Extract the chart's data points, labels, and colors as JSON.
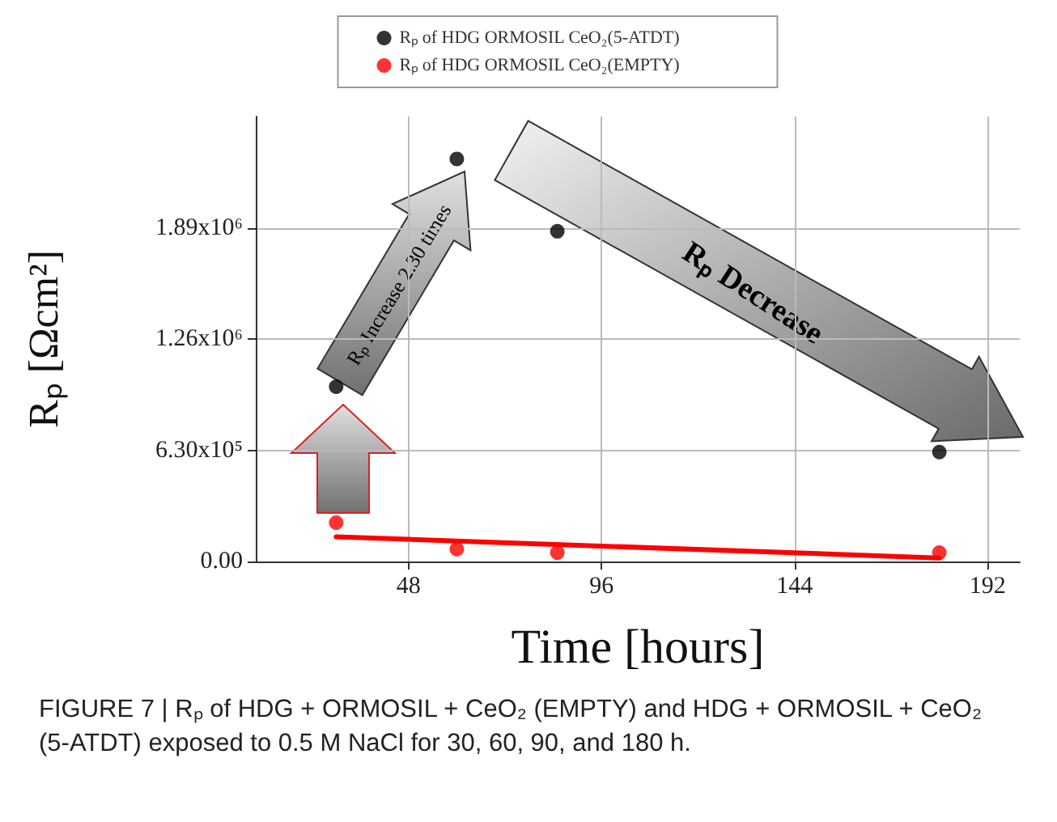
{
  "chart_data": {
    "type": "scatter",
    "xlabel": "Time [hours]",
    "ylabel": "Rₚ [Ωcm²]",
    "xlim": [
      10,
      200
    ],
    "xticks": [
      48,
      96,
      144,
      192
    ],
    "ylim": [
      0,
      2520000
    ],
    "yticks": [
      {
        "value": 0,
        "label": "0.00"
      },
      {
        "value": 630000,
        "label": "6.30x10⁵"
      },
      {
        "value": 1260000,
        "label": "1.26x10⁶"
      },
      {
        "value": 1890000,
        "label": "1.89x10⁶"
      }
    ],
    "series": [
      {
        "name": "Rₚ of HDG ORMOSIL CeO₂(5-ATDT)",
        "color": "#000000",
        "x": [
          30,
          60,
          85,
          180
        ],
        "values": [
          990000,
          2280000,
          1870000,
          620000
        ]
      },
      {
        "name": "Rₚ of HDG ORMOSIL CeO₂(EMPTY)",
        "color": "#ff0000",
        "x": [
          30,
          60,
          85,
          180
        ],
        "values": [
          220000,
          70000,
          50000,
          50000
        ]
      },
      {
        "type": "line",
        "color": "#ff0000",
        "marker": "none",
        "x": [
          30,
          180
        ],
        "values": [
          140000,
          20000
        ]
      }
    ],
    "annotations": [
      "Rₚ Increase 2.30 times",
      "Rₚ Decrease",
      "FIGURE 7 | Rₚ of HDG + ORMOSIL + CeO₂ (EMPTY) and HDG + ORMOSIL + CeO₂ (5-ATDT) exposed to 0.5 M NaCl for 30, 60, 90, and 180 h."
    ],
    "grid": true,
    "legend": "top",
    "marker": "circle"
  }
}
